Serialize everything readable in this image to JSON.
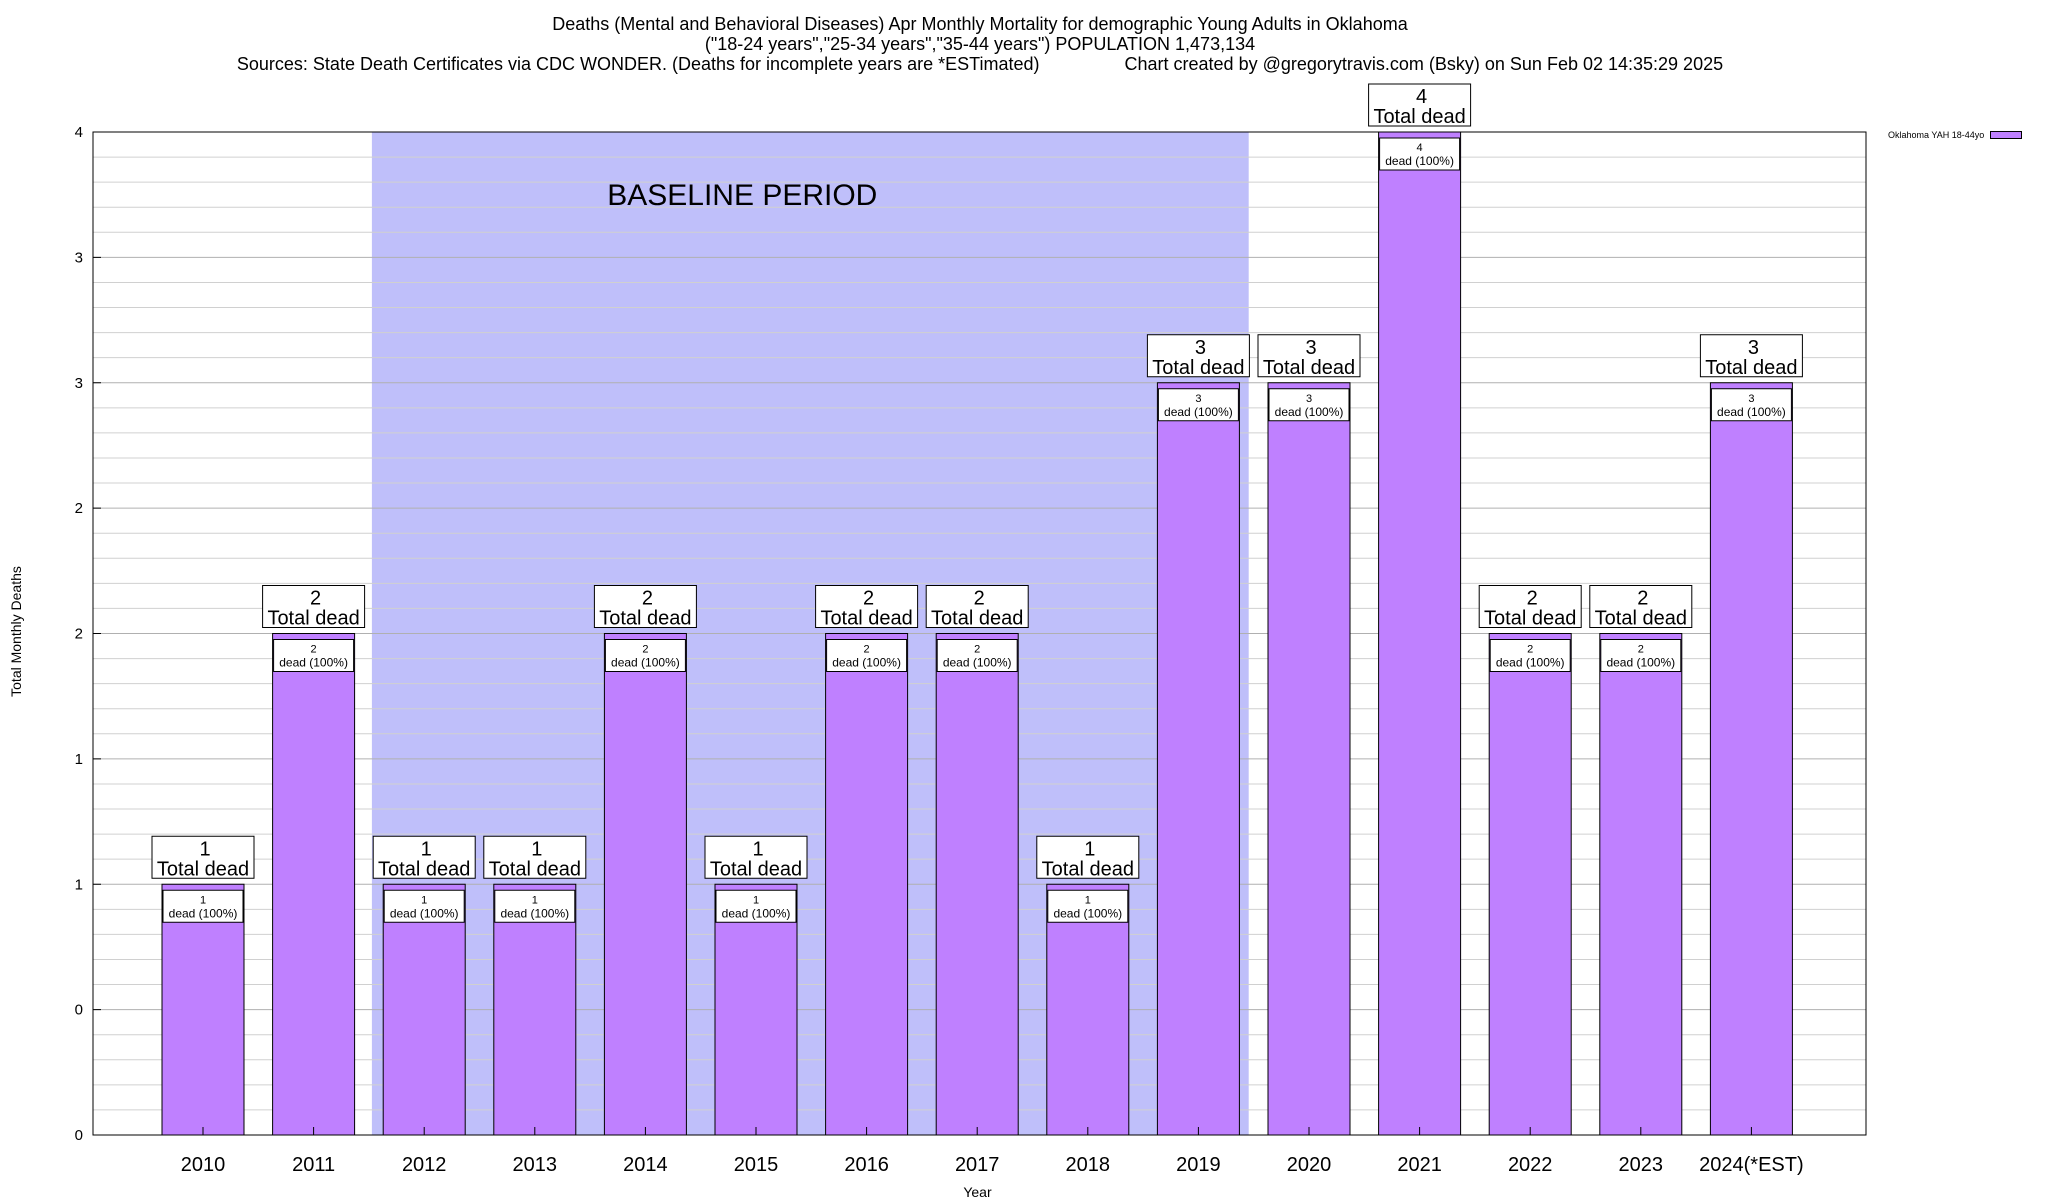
{
  "title": {
    "line1": "Deaths (Mental and Behavioral Diseases) Apr Monthly Mortality for demographic Young Adults in Oklahoma",
    "line2": "(\"18-24 years\",\"25-34 years\",\"35-44 years\") POPULATION 1,473,134",
    "line3": "Sources: State Death Certificates via CDC WONDER. (Deaths for incomplete years are *ESTimated)                 Chart created by @gregorytravis.com (Bsky) on Sun Feb 02 14:35:29 2025"
  },
  "chart_data": {
    "type": "bar",
    "xlabel": "Year",
    "ylabel": "Total Monthly Deaths",
    "categories": [
      "2010",
      "2011",
      "2012",
      "2013",
      "2014",
      "2015",
      "2016",
      "2017",
      "2018",
      "2019",
      "2020",
      "2021",
      "2022",
      "2023",
      "2024(*EST)"
    ],
    "series": [
      {
        "name": "Oklahoma YAH 18-44yo",
        "values": [
          1,
          2,
          1,
          1,
          2,
          1,
          2,
          2,
          1,
          3,
          3,
          4,
          2,
          2,
          3
        ],
        "color": "#bf80ff"
      }
    ],
    "ylim": [
      0,
      4
    ],
    "ytick_values": [
      0,
      0.5,
      1,
      1.5,
      2,
      2.5,
      3,
      3.5,
      4
    ],
    "ytick_labels": [
      "0",
      "0",
      "1",
      "1",
      "2",
      "2",
      "3",
      "3",
      "4"
    ],
    "bar_total_label": "Total dead",
    "bar_inner_label": "dead (100%)",
    "baseline": {
      "label": "BASELINE PERIOD",
      "start_category": "2012",
      "end_category": "2019",
      "color": "#bfbffa"
    },
    "grid": true,
    "legend_position": "top-right"
  }
}
